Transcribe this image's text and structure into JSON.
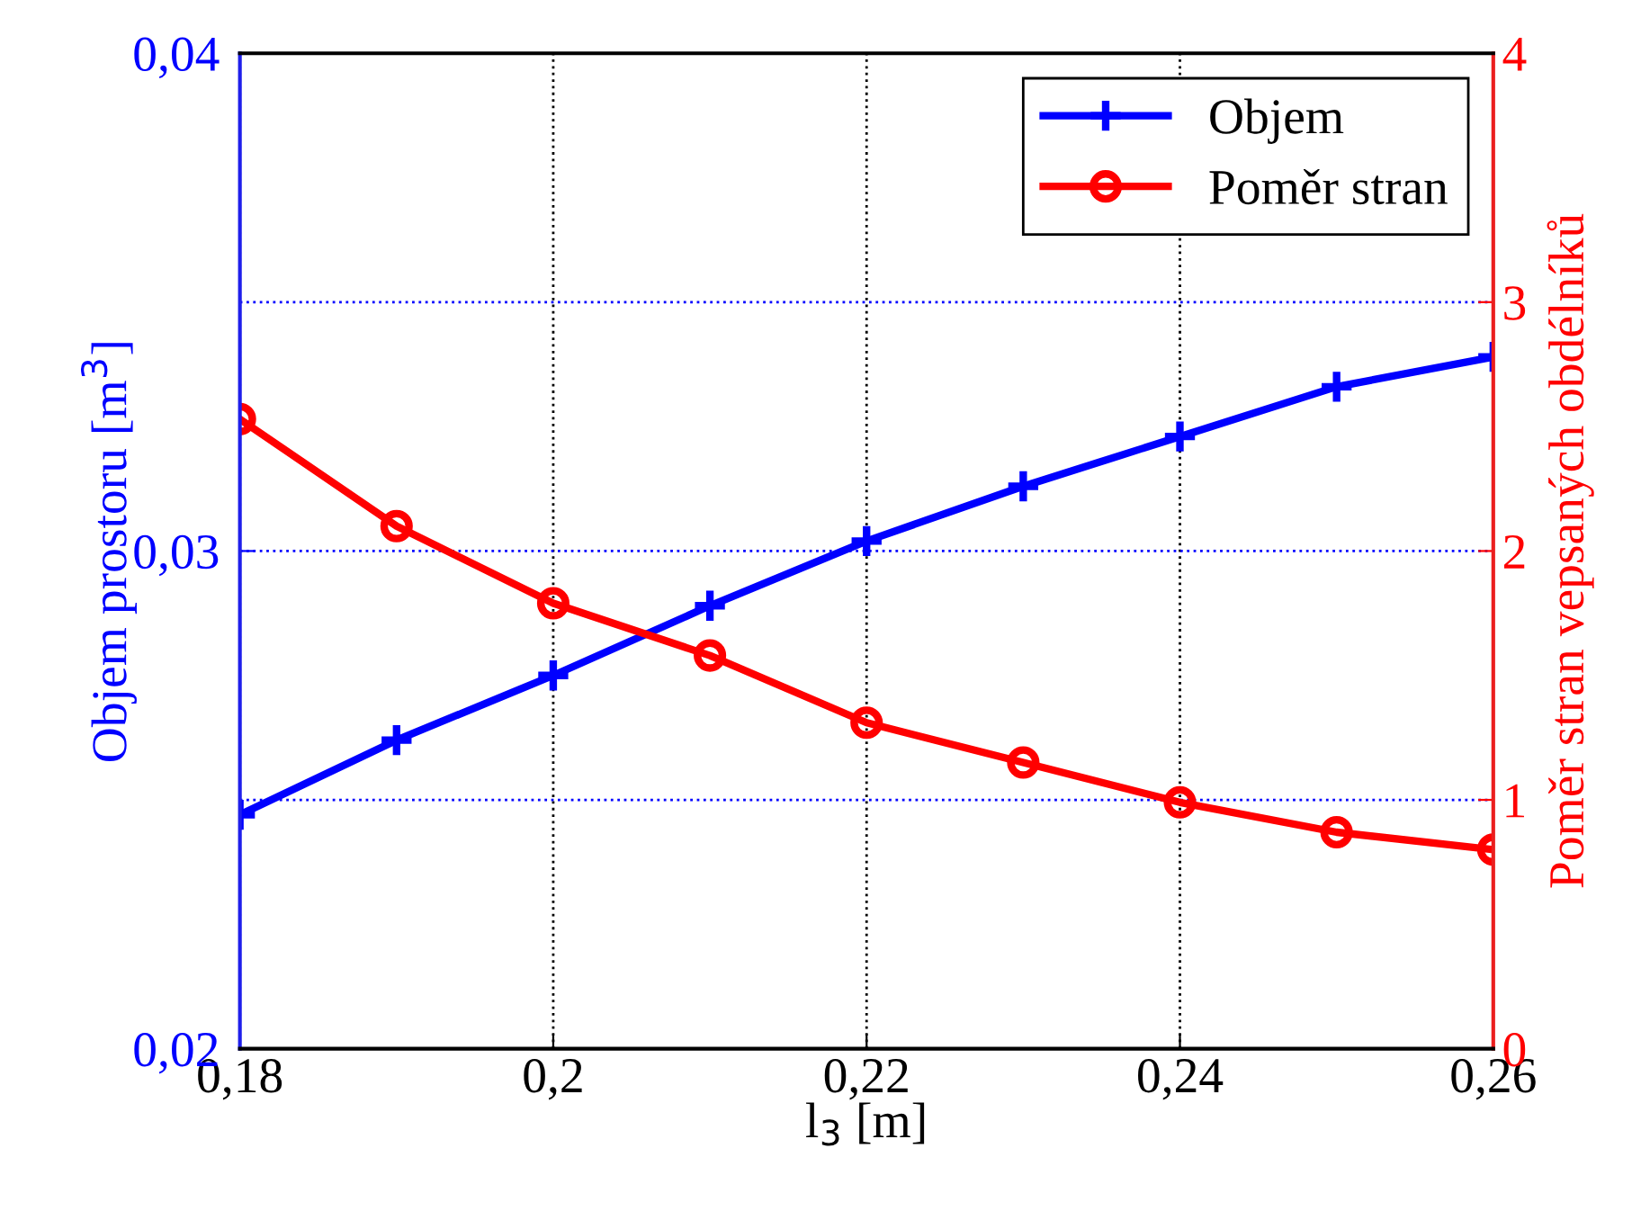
{
  "chart_data": {
    "type": "line",
    "xlabel": "l$_{3}$ [m]",
    "ylabel": "Objem prostoru [m$^{3}$]",
    "y2label": "Poměr stran vepsaných obdélníků",
    "x": [
      0.18,
      0.19,
      0.2,
      0.21,
      0.22,
      0.23,
      0.24,
      0.25,
      0.26
    ],
    "series": [
      {
        "name": "Objem",
        "color": "#0000ff",
        "marker": "cross",
        "values": [
          0.0247,
          0.0262,
          0.0275,
          0.0289,
          0.0302,
          0.0313,
          0.0323,
          0.0333,
          0.0339
        ]
      },
      {
        "name": "Poměr stran",
        "color": "#ff0000",
        "marker": "circle",
        "axis": "y2",
        "values": [
          2.53,
          2.1,
          1.79,
          1.58,
          1.31,
          1.15,
          0.99,
          0.87,
          0.8
        ]
      }
    ],
    "xlim": [
      0.18,
      0.26
    ],
    "xticks": [
      {
        "value": 0.18,
        "label": "0,18"
      },
      {
        "value": 0.2,
        "label": "0,2"
      },
      {
        "value": 0.22,
        "label": "0,22"
      },
      {
        "value": 0.24,
        "label": "0,24"
      },
      {
        "value": 0.26,
        "label": "0,26"
      }
    ],
    "ylim": [
      0.02,
      0.04
    ],
    "yticks": [
      {
        "value": 0.02,
        "label": "0,02"
      },
      {
        "value": 0.03,
        "label": "0,03"
      },
      {
        "value": 0.04,
        "label": "0,04"
      }
    ],
    "y2lim": [
      0,
      4
    ],
    "y2ticks": [
      0,
      1,
      2,
      3,
      4
    ],
    "grid": true,
    "legend": "top right",
    "line_style": "solid"
  }
}
